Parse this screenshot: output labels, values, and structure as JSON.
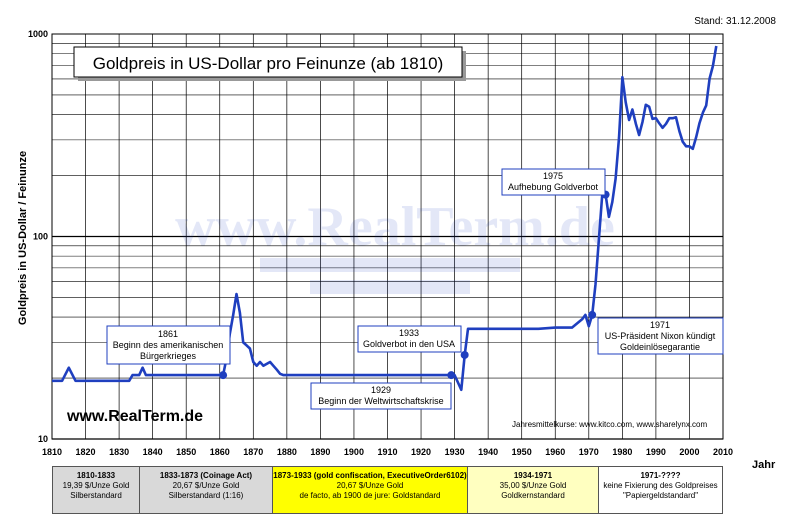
{
  "title": "Goldpreis in US-Dollar pro Feinunze (ab 1810)",
  "stand": "Stand: 31.12.2008",
  "watermark": "www.RealTerm.de",
  "brand": "www.RealTerm.de",
  "source_note": "Jahresmittelkurse: www.kitco.com, www.sharelynx.com",
  "ylabel": "Goldpreis in US-Dollar / Feinunze",
  "xlabel": "Jahr",
  "colors": {
    "line": "#1f3fbf",
    "callout_border": "#1f3fbf",
    "yellow": "#ffff00",
    "gray": "#d9d9d9",
    "lightyellow": "#ffffc0",
    "white": "#ffffff"
  },
  "annotations": {
    "a1861": [
      "1861",
      "Beginn des amerikanischen",
      "Bürgerkrieges"
    ],
    "a1929": [
      "1929",
      "Beginn der Weltwirtschaftskrise"
    ],
    "a1933": [
      "1933",
      "Goldverbot in den USA"
    ],
    "a1975": [
      "1975",
      "Aufhebung Goldverbot"
    ],
    "a1971": [
      "1971",
      "US-Präsident Nixon kündigt",
      "Goldeinlösegarantie"
    ]
  },
  "eras": [
    {
      "title": "1810-1833",
      "l2": "19,39 $/Unze Gold",
      "l3": "Silberstandard",
      "l4": ""
    },
    {
      "title": "1833-1873 (Coinage Act)",
      "l2": "20,67 $/Unze Gold",
      "l3": "Silberstandard (1:16)",
      "l4": ""
    },
    {
      "title": "1873-1933 (gold confiscation, ExecutiveOrder6102)",
      "l2": "20,67 $/Unze Gold",
      "l3": "de facto, ab 1900 de jure: Goldstandard",
      "l4": ""
    },
    {
      "title": "1934-1971",
      "l2": "35,00 $/Unze Gold",
      "l3": "Goldkernstandard",
      "l4": ""
    },
    {
      "title": "1971-????",
      "l2": "keine Fixierung des Goldpreises",
      "l3": "\"Papiergeldstandard\"",
      "l4": ""
    }
  ],
  "chart_data": {
    "type": "line",
    "title": "Goldpreis in US-Dollar pro Feinunze (ab 1810)",
    "xlabel": "Jahr",
    "ylabel": "Goldpreis in US-Dollar / Feinunze",
    "xlim": [
      1810,
      2010
    ],
    "ylim": [
      10,
      1000
    ],
    "yscale": "log",
    "grid": true,
    "x_ticks": [
      "1810",
      "1820",
      "1830",
      "1840",
      "1850",
      "1860",
      "1870",
      "1880",
      "1890",
      "1900",
      "1910",
      "1920",
      "1930",
      "1940",
      "1950",
      "1960",
      "1970",
      "1980",
      "1990",
      "2000",
      "2010"
    ],
    "y_ticks": [
      "10",
      "100",
      "1000"
    ],
    "series": [
      {
        "points": [
          [
            1810,
            19.39
          ],
          [
            1813,
            19.39
          ],
          [
            1815,
            22.5
          ],
          [
            1817,
            19.39
          ],
          [
            1833,
            19.39
          ],
          [
            1834,
            20.67
          ],
          [
            1836,
            20.67
          ],
          [
            1837,
            22.5
          ],
          [
            1838,
            20.67
          ],
          [
            1860,
            20.67
          ],
          [
            1861,
            20.67
          ],
          [
            1862,
            25
          ],
          [
            1863,
            33
          ],
          [
            1864,
            41
          ],
          [
            1865,
            52
          ],
          [
            1866,
            42
          ],
          [
            1867,
            30
          ],
          [
            1868,
            29
          ],
          [
            1869,
            28
          ],
          [
            1870,
            24
          ],
          [
            1871,
            23
          ],
          [
            1872,
            24
          ],
          [
            1873,
            23
          ],
          [
            1874,
            23.5
          ],
          [
            1875,
            24
          ],
          [
            1876,
            23
          ],
          [
            1877,
            22
          ],
          [
            1878,
            21
          ],
          [
            1879,
            20.67
          ],
          [
            1928,
            20.67
          ],
          [
            1929,
            20.67
          ],
          [
            1930,
            20.67
          ],
          [
            1931,
            19
          ],
          [
            1932,
            17.5
          ],
          [
            1933,
            26
          ],
          [
            1934,
            35
          ],
          [
            1950,
            35
          ],
          [
            1955,
            35
          ],
          [
            1960,
            35.5
          ],
          [
            1965,
            35.5
          ],
          [
            1968,
            39
          ],
          [
            1969,
            41
          ],
          [
            1970,
            36
          ],
          [
            1971,
            41
          ],
          [
            1972,
            58
          ],
          [
            1973,
            97
          ],
          [
            1974,
            160
          ],
          [
            1975,
            161
          ],
          [
            1976,
            125
          ],
          [
            1977,
            148
          ],
          [
            1978,
            193
          ],
          [
            1979,
            307
          ],
          [
            1980,
            612
          ],
          [
            1981,
            460
          ],
          [
            1982,
            376
          ],
          [
            1983,
            424
          ],
          [
            1984,
            361
          ],
          [
            1985,
            317
          ],
          [
            1986,
            368
          ],
          [
            1987,
            447
          ],
          [
            1988,
            437
          ],
          [
            1989,
            381
          ],
          [
            1990,
            384
          ],
          [
            1991,
            362
          ],
          [
            1992,
            344
          ],
          [
            1993,
            360
          ],
          [
            1994,
            384
          ],
          [
            1995,
            384
          ],
          [
            1996,
            388
          ],
          [
            1997,
            331
          ],
          [
            1998,
            294
          ],
          [
            1999,
            279
          ],
          [
            2000,
            279
          ],
          [
            2001,
            271
          ],
          [
            2002,
            310
          ],
          [
            2003,
            363
          ],
          [
            2004,
            409
          ],
          [
            2005,
            444
          ],
          [
            2006,
            603
          ],
          [
            2007,
            695
          ],
          [
            2008,
            872
          ]
        ]
      }
    ],
    "markers": [
      {
        "x": 1861,
        "y": 20.67
      },
      {
        "x": 1929,
        "y": 20.67
      },
      {
        "x": 1933,
        "y": 26
      },
      {
        "x": 1971,
        "y": 41
      },
      {
        "x": 1975,
        "y": 161
      }
    ]
  }
}
